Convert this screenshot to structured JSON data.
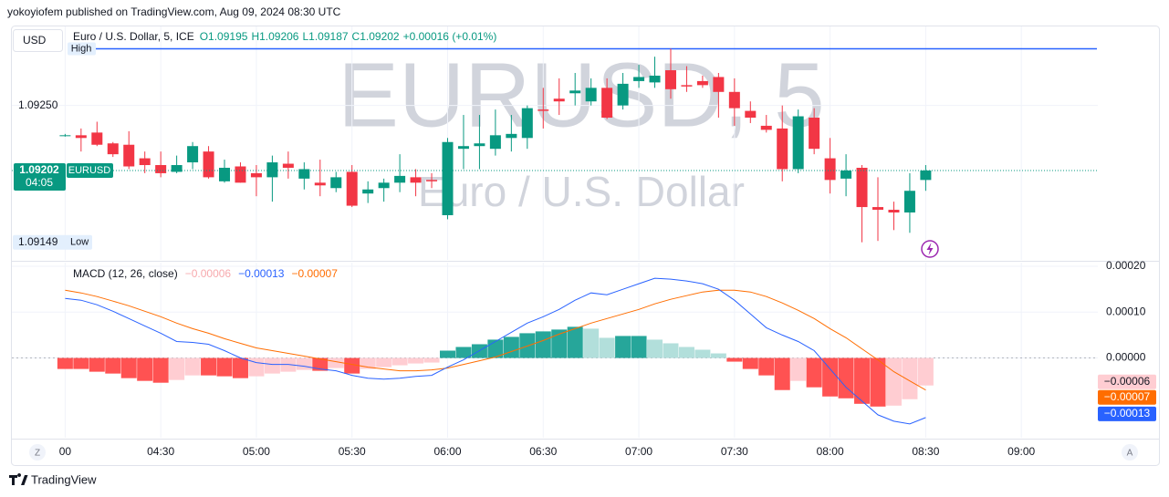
{
  "header": {
    "publisher": "yokoyiofem published on TradingView.com, Aug 09, 2024 08:30 UTC"
  },
  "ui": {
    "currency": "USD",
    "scale_buttons": [
      "Z",
      "A"
    ],
    "footer": "TradingView"
  },
  "chart_data": [
    {
      "type": "candlestick",
      "symbol": "EURUSD",
      "legend_title": "Euro / U.S. Dollar, 5, ICE",
      "legend_items": [
        "O1.09195",
        "H1.09206",
        "L1.09187",
        "C1.09202"
      ],
      "legend_change": "+0.00016 (+0.01%)",
      "watermark": [
        "EURUSD, 5",
        "Euro / U.S. Dollar"
      ],
      "last_price_label": "1.09202",
      "countdown": "04:05",
      "high_label": "High",
      "low_label": "Low",
      "low_value_label": "1.09149",
      "colors": {
        "up": "#089981",
        "down": "#f23645",
        "high_line": "#2962ff"
      },
      "x": [
        "04:00",
        "04:05",
        "04:10",
        "04:15",
        "04:20",
        "04:25",
        "04:30",
        "04:35",
        "04:40",
        "04:45",
        "04:50",
        "04:55",
        "05:00",
        "05:05",
        "05:10",
        "05:15",
        "05:20",
        "05:25",
        "05:30",
        "05:35",
        "05:40",
        "05:45",
        "05:50",
        "05:55",
        "06:00",
        "06:05",
        "06:10",
        "06:15",
        "06:20",
        "06:25",
        "06:30",
        "06:35",
        "06:40",
        "06:45",
        "06:50",
        "06:55",
        "07:00",
        "07:05",
        "07:10",
        "07:15",
        "07:20",
        "07:25",
        "07:30",
        "07:35",
        "07:40",
        "07:45",
        "07:50",
        "07:55",
        "08:00",
        "08:05",
        "08:10",
        "08:15",
        "08:20",
        "08:25",
        "08:30"
      ],
      "open": [
        1.09228,
        1.09228,
        1.0923,
        1.09222,
        1.09221,
        1.09211,
        1.09206,
        1.09201,
        1.09208,
        1.09216,
        1.09194,
        1.09205,
        1.092,
        1.09197,
        1.09207,
        1.09196,
        1.09193,
        1.09189,
        1.09201,
        1.09185,
        1.09189,
        1.09193,
        1.09197,
        1.09195,
        1.09169,
        1.09218,
        1.0922,
        1.09218,
        1.09226,
        1.09226,
        1.09247,
        1.09255,
        1.09259,
        1.09253,
        1.09263,
        1.0925,
        1.09268,
        1.09267,
        1.09276,
        1.09265,
        1.09268,
        1.09271,
        1.0926,
        1.09246,
        1.09235,
        1.09233,
        1.09203,
        1.09241,
        1.09211,
        1.09196,
        1.09204,
        1.09175,
        1.09173,
        1.09171,
        1.09195
      ],
      "high": [
        1.09229,
        1.09233,
        1.09238,
        1.09223,
        1.09231,
        1.09216,
        1.09216,
        1.09213,
        1.09223,
        1.0922,
        1.0921,
        1.09208,
        1.09206,
        1.09213,
        1.09216,
        1.09208,
        1.0921,
        1.09201,
        1.09206,
        1.09194,
        1.09196,
        1.09214,
        1.09203,
        1.092,
        1.09226,
        1.09243,
        1.09243,
        1.09247,
        1.09243,
        1.0925,
        1.09263,
        1.0927,
        1.09274,
        1.0927,
        1.0927,
        1.09274,
        1.0928,
        1.09286,
        1.09292,
        1.09279,
        1.09272,
        1.09274,
        1.0927,
        1.09253,
        1.09243,
        1.0925,
        1.09247,
        1.09248,
        1.09226,
        1.09214,
        1.09206,
        1.09197,
        1.09179,
        1.092,
        1.09206
      ],
      "low": [
        1.09227,
        1.09216,
        1.0922,
        1.09212,
        1.09203,
        1.092,
        1.09197,
        1.092,
        1.09203,
        1.09196,
        1.09193,
        1.09193,
        1.09183,
        1.09179,
        1.09196,
        1.09188,
        1.09183,
        1.09186,
        1.09175,
        1.09178,
        1.09179,
        1.09186,
        1.09183,
        1.09189,
        1.09166,
        1.09203,
        1.09203,
        1.09213,
        1.09216,
        1.09218,
        1.09233,
        1.09243,
        1.0925,
        1.0925,
        1.0924,
        1.09247,
        1.09263,
        1.09263,
        1.09255,
        1.0926,
        1.09263,
        1.09241,
        1.09235,
        1.09237,
        1.0923,
        1.09194,
        1.092,
        1.09214,
        1.09185,
        1.09183,
        1.09149,
        1.0915,
        1.09158,
        1.09156,
        1.09187
      ],
      "close": [
        1.09228,
        1.09226,
        1.09221,
        1.09214,
        1.09205,
        1.09206,
        1.092,
        1.09206,
        1.0922,
        1.09197,
        1.09204,
        1.09193,
        1.09197,
        1.09208,
        1.09204,
        1.09203,
        1.09191,
        1.09197,
        1.09176,
        1.09188,
        1.09193,
        1.09198,
        1.09193,
        1.09194,
        1.09223,
        1.0922,
        1.09222,
        1.09228,
        1.09229,
        1.09248,
        1.09246,
        1.09253,
        1.09261,
        1.09263,
        1.09241,
        1.09266,
        1.09271,
        1.09272,
        1.09262,
        1.09264,
        1.09265,
        1.0926,
        1.09248,
        1.09241,
        1.09232,
        1.09203,
        1.09242,
        1.09218,
        1.09195,
        1.09202,
        1.09175,
        1.09173,
        1.09171,
        1.09187,
        1.09202
      ],
      "xlim": [
        "03:43",
        "09:24"
      ],
      "xticks": [
        {
          "value": "04:00",
          "label": "00"
        },
        "04:30",
        "05:00",
        "05:30",
        "06:00",
        "06:30",
        "07:00",
        "07:30",
        "08:00",
        "08:30",
        "09:00"
      ],
      "ylim": [
        1.09136,
        1.09309
      ],
      "yticks": [
        {
          "value": 1.0925,
          "label": "1.09250"
        }
      ],
      "grid": true
    },
    {
      "type": "macd",
      "title": "MACD (12, 26, close)",
      "histogram": {
        "values": [
          -2.4e-05,
          -2.4e-05,
          -3e-05,
          -3.4e-05,
          -4.4e-05,
          -5e-05,
          -5.4e-05,
          -4.8e-05,
          -3.8e-05,
          -3.8e-05,
          -4e-05,
          -4.4e-05,
          -4e-05,
          -3.4e-05,
          -3e-05,
          -2.6e-05,
          -2.8e-05,
          -2.2e-05,
          -3.4e-05,
          -2.4e-05,
          -2e-05,
          -1.6e-05,
          -1.2e-05,
          -1e-05,
          1.6e-05,
          2.4e-05,
          3e-05,
          4e-05,
          4.6e-05,
          5.4e-05,
          5.8e-05,
          6.2e-05,
          6.8e-05,
          6.4e-05,
          4.4e-05,
          4.8e-05,
          4.8e-05,
          4e-05,
          3.2e-05,
          2.4e-05,
          1.8e-05,
          1e-05,
          -8e-06,
          -2.4e-05,
          -3.8e-05,
          -7e-05,
          -5e-05,
          -6.4e-05,
          -8.4e-05,
          -8.8e-05,
          -0.0001,
          -0.000106,
          -0.000104,
          -9e-05,
          -6e-05
        ],
        "value_label": "−0.00006",
        "palette": [
          "#26a69a",
          "#b2dfdb",
          "#ff5252",
          "#ffcdd2"
        ]
      },
      "macd_line": {
        "values": [
          0.00013,
          0.000126,
          0.000116,
          0.000102,
          8.6e-05,
          7e-05,
          5.4e-05,
          3.6e-05,
          3.4e-05,
          3e-05,
          1.6e-05,
          0,
          -1e-05,
          -1.4e-05,
          -1.4e-05,
          -1.8e-05,
          -2.4e-05,
          -2.8e-05,
          -3.8e-05,
          -4.4e-05,
          -4.6e-05,
          -4.4e-05,
          -4e-05,
          -3.8e-05,
          -2e-05,
          -4e-06,
          1.6e-05,
          3.6e-05,
          5.6e-05,
          7.6e-05,
          9e-05,
          0.000106,
          0.000126,
          0.000142,
          0.000138,
          0.00015,
          0.000162,
          0.000174,
          0.000172,
          0.000168,
          0.000162,
          0.00015,
          0.000126,
          9.6e-05,
          6.6e-05,
          5e-05,
          3.6e-05,
          1.6e-05,
          -2.4e-05,
          -6.4e-05,
          -9.4e-05,
          -0.000124,
          -0.000138,
          -0.000144,
          -0.00013
        ],
        "color": "#2962ff",
        "value_label": "−0.00013"
      },
      "signal_line": {
        "values": [
          0.000148,
          0.000142,
          0.000134,
          0.000124,
          0.000114,
          0.000102,
          9e-05,
          7.6e-05,
          6.4e-05,
          5.4e-05,
          4.2e-05,
          3.2e-05,
          2.2e-05,
          1.6e-05,
          1e-05,
          4e-06,
          -2e-06,
          -8e-06,
          -1.4e-05,
          -2e-05,
          -2.4e-05,
          -2.8e-05,
          -2.8e-05,
          -2.6e-05,
          -2.2e-05,
          -1.4e-05,
          -6e-06,
          2e-06,
          1.4e-05,
          2.6e-05,
          3.8e-05,
          5.2e-05,
          6.4e-05,
          7.6e-05,
          8.6e-05,
          9.6e-05,
          0.000106,
          0.000118,
          0.000128,
          0.000136,
          0.000144,
          0.000148,
          0.000148,
          0.000144,
          0.000134,
          0.00012,
          0.000104,
          8.6e-05,
          6.4e-05,
          4.4e-05,
          2e-05,
          -4e-06,
          -3e-05,
          -5e-05,
          -7e-05
        ],
        "color": "#ff6d00",
        "value_label": "−0.00007"
      },
      "ylim": [
        -0.000174,
        0.00021
      ],
      "yticks": [
        {
          "value": 0,
          "label": "0.00000"
        },
        {
          "value": 0.0001,
          "label": "0.00010"
        },
        {
          "value": 0.0002,
          "label": "0.00020"
        }
      ],
      "zero_line": true,
      "grid": true
    }
  ]
}
